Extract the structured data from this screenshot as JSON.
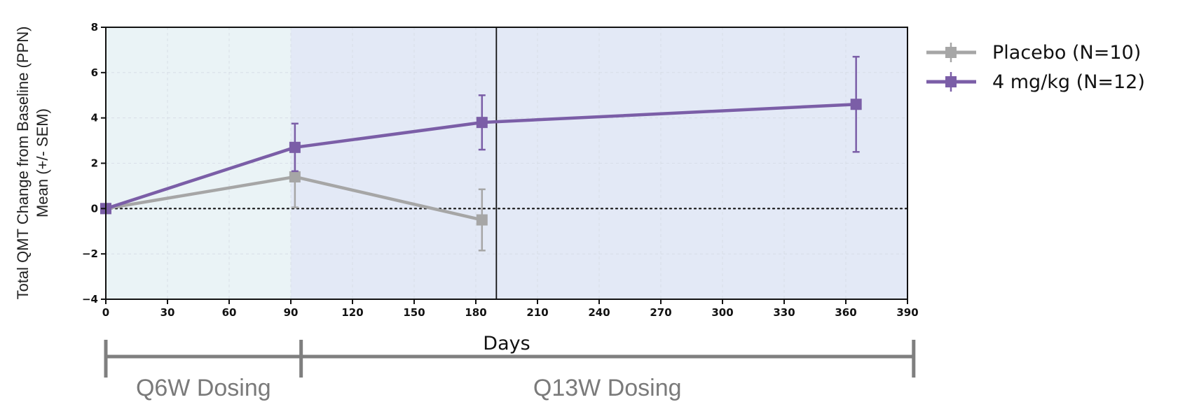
{
  "chart_data": {
    "type": "line",
    "xlabel": "Days",
    "ylabel_lines": [
      "Total QMT Change from Baseline (PPN)",
      "Mean (+/- SEM)"
    ],
    "xlim": [
      0,
      390
    ],
    "ylim": [
      -4,
      8
    ],
    "xticks": [
      0,
      30,
      60,
      90,
      120,
      150,
      180,
      210,
      240,
      270,
      300,
      330,
      360,
      390
    ],
    "yticks": [
      -4,
      -2,
      0,
      2,
      4,
      6,
      8
    ],
    "ytick_labels": [
      "−4",
      "−2",
      "0",
      "2",
      "4",
      "6",
      "8"
    ],
    "reference_line_y": 0,
    "vertical_line_x": 190,
    "grid": true,
    "legend_position": "right, outside plot",
    "shaded_regions": [
      {
        "x": [
          0,
          90
        ],
        "color": "#eaf3f6"
      },
      {
        "x": [
          90,
          390
        ],
        "color": "#e3e9f6"
      }
    ],
    "series": [
      {
        "name": "Placebo (N=10)",
        "color": "#a6a6a6",
        "marker": "square",
        "x": [
          0,
          92,
          183
        ],
        "y": [
          0.0,
          1.4,
          -0.5
        ],
        "err": [
          0.0,
          1.35,
          1.35
        ]
      },
      {
        "name": "4 mg/kg (N=12)",
        "color": "#7b5ea7",
        "marker": "square",
        "x": [
          0,
          92,
          183,
          365
        ],
        "y": [
          0.0,
          2.7,
          3.8,
          4.6
        ],
        "err": [
          0.0,
          1.05,
          1.2,
          2.1
        ]
      }
    ],
    "dosing_schedule": [
      {
        "label": "Q6W Dosing",
        "x_start": 0,
        "x_end": 95
      },
      {
        "label": "Q13W Dosing",
        "x_start": 95,
        "x_end": 393
      }
    ]
  }
}
